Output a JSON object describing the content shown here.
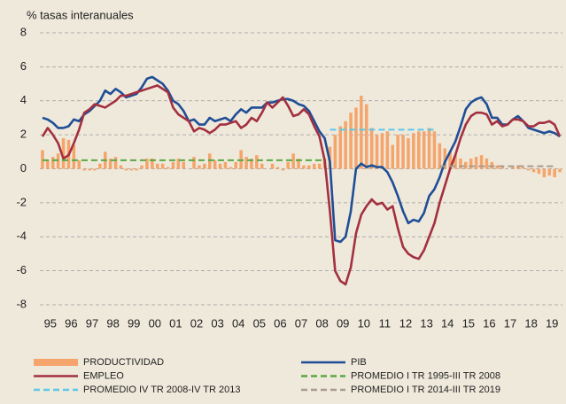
{
  "chart_data": {
    "type": "combo",
    "title": "% tasas interanuales",
    "categories": [
      "95",
      null,
      null,
      null,
      "96",
      null,
      null,
      null,
      "97",
      null,
      null,
      null,
      "98",
      null,
      null,
      null,
      "99",
      null,
      null,
      null,
      "00",
      null,
      null,
      null,
      "01",
      null,
      null,
      null,
      "02",
      null,
      null,
      null,
      "03",
      null,
      null,
      null,
      "04",
      null,
      null,
      null,
      "05",
      null,
      null,
      null,
      "06",
      null,
      null,
      null,
      "07",
      null,
      null,
      null,
      "08",
      null,
      null,
      null,
      "09",
      null,
      null,
      null,
      "10",
      null,
      null,
      null,
      "11",
      null,
      null,
      null,
      "12",
      null,
      null,
      null,
      "13",
      null,
      null,
      null,
      "14",
      null,
      null,
      null,
      "15",
      null,
      null,
      null,
      "16",
      null,
      null,
      null,
      "17",
      null,
      null,
      null,
      "18",
      null,
      null,
      null,
      "19",
      null,
      null,
      null
    ],
    "ylim": [
      -8,
      8
    ],
    "yticks": [
      -8,
      -6,
      -4,
      -2,
      0,
      2,
      4,
      6,
      8
    ],
    "grid": true,
    "legend": "bottom",
    "series": [
      {
        "name": "PRODUCTIVIDAD",
        "type": "bar",
        "color": "#f5a56c",
        "values": [
          1.1,
          0.5,
          0.7,
          0.9,
          1.8,
          1.7,
          1.4,
          0.5,
          -0.1,
          -0.1,
          -0.1,
          0.3,
          1.0,
          0.6,
          0.7,
          0.2,
          -0.1,
          -0.1,
          -0.1,
          0.2,
          0.6,
          0.6,
          0.3,
          0.3,
          0.1,
          0.4,
          0.6,
          0.4,
          0.0,
          0.7,
          0.2,
          0.3,
          0.9,
          0.5,
          0.3,
          0.4,
          0.1,
          0.4,
          1.1,
          0.7,
          0.6,
          0.8,
          0.3,
          0.0,
          0.3,
          0.1,
          -0.1,
          0.4,
          0.9,
          0.6,
          0.2,
          0.2,
          0.3,
          0.3,
          0.6,
          1.3,
          2.0,
          2.5,
          2.8,
          3.3,
          3.6,
          4.3,
          3.8,
          2.4,
          2.0,
          2.1,
          2.2,
          1.4,
          2.0,
          2.0,
          1.8,
          2.1,
          2.2,
          2.2,
          2.4,
          2.2,
          1.5,
          1.2,
          1.0,
          0.8,
          0.6,
          0.4,
          0.6,
          0.7,
          0.8,
          0.6,
          0.4,
          0.2,
          0.1,
          0.0,
          0.1,
          0.2,
          0.1,
          -0.1,
          -0.2,
          -0.3,
          -0.5,
          -0.4,
          -0.5,
          -0.2
        ]
      },
      {
        "name": "PIB",
        "type": "line",
        "color": "#1f4e96",
        "values": [
          3.0,
          2.9,
          2.7,
          2.4,
          2.4,
          2.5,
          2.9,
          2.8,
          3.2,
          3.4,
          3.7,
          4.0,
          4.6,
          4.4,
          4.7,
          4.5,
          4.2,
          4.3,
          4.4,
          4.8,
          5.3,
          5.4,
          5.2,
          5.0,
          4.6,
          4.0,
          3.8,
          3.4,
          2.8,
          2.9,
          2.6,
          2.6,
          3.0,
          2.8,
          2.9,
          3.0,
          2.8,
          3.2,
          3.5,
          3.3,
          3.6,
          3.6,
          3.6,
          3.9,
          3.9,
          4.0,
          4.1,
          4.1,
          4.0,
          3.8,
          3.7,
          3.4,
          2.8,
          2.2,
          1.8,
          0.4,
          -4.2,
          -4.3,
          -4.0,
          -2.5,
          0.0,
          0.3,
          0.1,
          0.2,
          0.1,
          0.1,
          -0.2,
          -0.8,
          -1.6,
          -2.5,
          -3.2,
          -3.0,
          -3.1,
          -2.6,
          -1.6,
          -1.2,
          -0.5,
          0.4,
          1.0,
          1.6,
          2.5,
          3.5,
          3.9,
          4.1,
          4.2,
          3.8,
          3.0,
          3.0,
          2.6,
          2.6,
          2.9,
          3.1,
          2.8,
          2.4,
          2.3,
          2.2,
          2.1,
          2.2,
          2.1,
          1.9
        ]
      },
      {
        "name": "EMPLEO",
        "type": "line",
        "color": "#a3303f",
        "values": [
          1.9,
          2.4,
          2.0,
          1.5,
          0.6,
          0.8,
          1.5,
          2.3,
          3.3,
          3.5,
          3.8,
          3.7,
          3.6,
          3.8,
          4.0,
          4.3,
          4.3,
          4.4,
          4.5,
          4.6,
          4.7,
          4.8,
          4.9,
          4.7,
          4.5,
          3.6,
          3.2,
          3.0,
          2.8,
          2.2,
          2.4,
          2.3,
          2.1,
          2.3,
          2.6,
          2.6,
          2.7,
          2.8,
          2.4,
          2.6,
          3.0,
          2.8,
          3.3,
          3.9,
          3.6,
          3.9,
          4.2,
          3.7,
          3.1,
          3.2,
          3.5,
          3.2,
          2.5,
          1.9,
          0.5,
          -2.5,
          -6.0,
          -6.6,
          -6.8,
          -5.8,
          -3.8,
          -2.7,
          -2.2,
          -1.8,
          -2.1,
          -2.0,
          -2.4,
          -2.2,
          -3.5,
          -4.6,
          -5.0,
          -5.2,
          -5.3,
          -4.8,
          -4.0,
          -3.2,
          -2.0,
          -1.0,
          0.0,
          0.8,
          1.8,
          2.6,
          3.1,
          3.3,
          3.3,
          3.2,
          2.6,
          2.8,
          2.5,
          2.6,
          2.9,
          2.9,
          2.8,
          2.5,
          2.5,
          2.7,
          2.7,
          2.8,
          2.6,
          1.9
        ]
      },
      {
        "name": "PROMEDIO I TR 1995-III TR 2008",
        "type": "line",
        "style": "dashed",
        "color": "#5aa843",
        "values": [
          0.5,
          0.5,
          0.5,
          0.5,
          0.5,
          0.5,
          0.5,
          0.5,
          0.5,
          0.5,
          0.5,
          0.5,
          0.5,
          0.5,
          0.5,
          0.5,
          0.5,
          0.5,
          0.5,
          0.5,
          0.5,
          0.5,
          0.5,
          0.5,
          0.5,
          0.5,
          0.5,
          0.5,
          0.5,
          0.5,
          0.5,
          0.5,
          0.5,
          0.5,
          0.5,
          0.5,
          0.5,
          0.5,
          0.5,
          0.5,
          0.5,
          0.5,
          0.5,
          0.5,
          0.5,
          0.5,
          0.5,
          0.5,
          0.5,
          0.5,
          0.5,
          0.5,
          0.5,
          0.5,
          0.5,
          null,
          null,
          null,
          null,
          null,
          null,
          null,
          null,
          null,
          null,
          null,
          null,
          null,
          null,
          null,
          null,
          null,
          null,
          null,
          null,
          null,
          null,
          null,
          null,
          null,
          null,
          null,
          null,
          null,
          null,
          null,
          null,
          null,
          null,
          null,
          null,
          null,
          null,
          null,
          null,
          null,
          null,
          null,
          null,
          null
        ]
      },
      {
        "name": "PROMEDIO IV TR 2008-IV TR 2013",
        "type": "line",
        "style": "dashed",
        "color": "#5bc8e8",
        "values": [
          null,
          null,
          null,
          null,
          null,
          null,
          null,
          null,
          null,
          null,
          null,
          null,
          null,
          null,
          null,
          null,
          null,
          null,
          null,
          null,
          null,
          null,
          null,
          null,
          null,
          null,
          null,
          null,
          null,
          null,
          null,
          null,
          null,
          null,
          null,
          null,
          null,
          null,
          null,
          null,
          null,
          null,
          null,
          null,
          null,
          null,
          null,
          null,
          null,
          null,
          null,
          null,
          null,
          null,
          null,
          2.3,
          2.3,
          2.3,
          2.3,
          2.3,
          2.3,
          2.3,
          2.3,
          2.3,
          2.3,
          2.3,
          2.3,
          2.3,
          2.3,
          2.3,
          2.3,
          2.3,
          2.3,
          2.3,
          2.3,
          2.3,
          null,
          null,
          null,
          null,
          null,
          null,
          null,
          null,
          null,
          null,
          null,
          null,
          null,
          null,
          null,
          null,
          null,
          null,
          null,
          null,
          null,
          null,
          null,
          null
        ]
      },
      {
        "name": "PROMEDIO I TR 2014-III TR 2019",
        "type": "line",
        "style": "dashed",
        "color": "#a89a8e",
        "values": [
          null,
          null,
          null,
          null,
          null,
          null,
          null,
          null,
          null,
          null,
          null,
          null,
          null,
          null,
          null,
          null,
          null,
          null,
          null,
          null,
          null,
          null,
          null,
          null,
          null,
          null,
          null,
          null,
          null,
          null,
          null,
          null,
          null,
          null,
          null,
          null,
          null,
          null,
          null,
          null,
          null,
          null,
          null,
          null,
          null,
          null,
          null,
          null,
          null,
          null,
          null,
          null,
          null,
          null,
          null,
          null,
          null,
          null,
          null,
          null,
          null,
          null,
          null,
          null,
          null,
          null,
          null,
          null,
          null,
          null,
          null,
          null,
          null,
          null,
          null,
          null,
          0.15,
          0.15,
          0.15,
          0.15,
          0.15,
          0.15,
          0.15,
          0.15,
          0.15,
          0.15,
          0.15,
          0.15,
          0.15,
          0.15,
          0.15,
          0.15,
          0.15,
          0.15,
          0.15,
          0.15,
          0.15,
          0.15,
          0.15,
          null
        ]
      }
    ]
  }
}
